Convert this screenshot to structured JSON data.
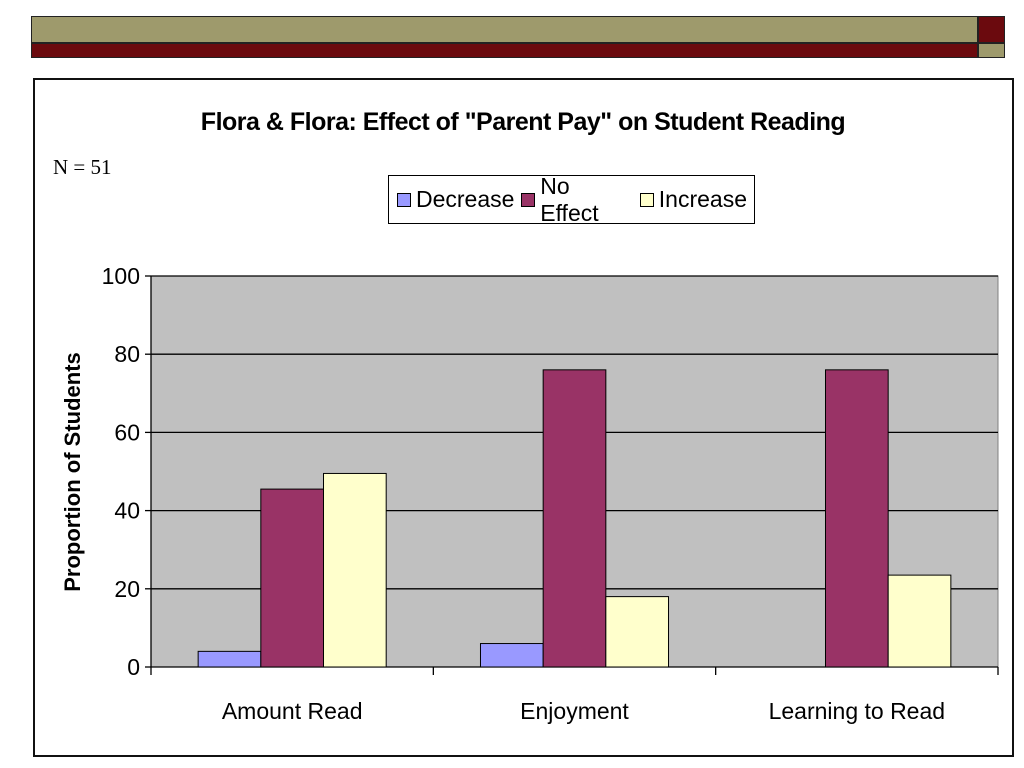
{
  "slide": {
    "band_colors": {
      "olive": "#9E9A6C",
      "maroon": "#6B0A0E"
    }
  },
  "note": "N = 51",
  "chart_data": {
    "type": "bar",
    "title": "Flora & Flora: Effect of \"Parent Pay\" on Student Reading",
    "xlabel": "",
    "ylabel": "Proportion of Students",
    "categories": [
      "Amount Read",
      "Enjoyment",
      "Learning to Read"
    ],
    "series": [
      {
        "name": "Decrease",
        "color": "#9999FF",
        "values": [
          4,
          6,
          0
        ]
      },
      {
        "name": "No Effect",
        "color": "#993366",
        "values": [
          45.5,
          76,
          76
        ]
      },
      {
        "name": "Increase",
        "color": "#FFFFCC",
        "values": [
          49.5,
          18,
          23.5
        ]
      }
    ],
    "ylim": [
      0,
      100
    ],
    "yticks": [
      0,
      20,
      40,
      60,
      80,
      100
    ],
    "grid": true,
    "plot_background": "#C0C0C0",
    "legend_position": "top"
  }
}
